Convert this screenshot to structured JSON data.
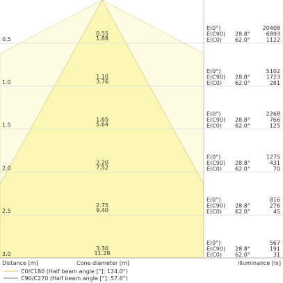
{
  "rows": [
    {
      "distance": "0.5",
      "diameter_c90": "0.55",
      "diameter_c0": "1.88",
      "e0": "20408",
      "ec90": "6893",
      "ec0": "1122"
    },
    {
      "distance": "1.0",
      "diameter_c90": "1.10",
      "diameter_c0": "3.76",
      "e0": "5102",
      "ec90": "1723",
      "ec0": "281"
    },
    {
      "distance": "1.5",
      "diameter_c90": "1.65",
      "diameter_c0": "5.64",
      "e0": "2268",
      "ec90": "766",
      "ec0": "125"
    },
    {
      "distance": "2.0",
      "diameter_c90": "2.20",
      "diameter_c0": "7.52",
      "e0": "1275",
      "ec90": "431",
      "ec0": "70"
    },
    {
      "distance": "2.5",
      "diameter_c90": "2.75",
      "diameter_c0": "9.40",
      "e0": "816",
      "ec90": "276",
      "ec0": "45"
    },
    {
      "distance": "3.0",
      "diameter_c90": "3.30",
      "diameter_c0": "11.28",
      "e0": "567",
      "ec90": "191",
      "ec0": "31"
    }
  ],
  "table_labels": {
    "e0": "E(0°)",
    "ec90": "E(C90)",
    "ec0": "E(C0)",
    "angle_c90": "28.8°",
    "angle_c0": "62.0°"
  },
  "axis_labels": {
    "distance": "Distance [m]",
    "diameter": "Cone diameter [m]",
    "illuminance": "Illuminance [lx]"
  },
  "legend": [
    "C0/C180 (Half beam angle [°]: 124.0°)",
    "C90/C270 (Half beam angle [°]: 57.6°)"
  ]
}
